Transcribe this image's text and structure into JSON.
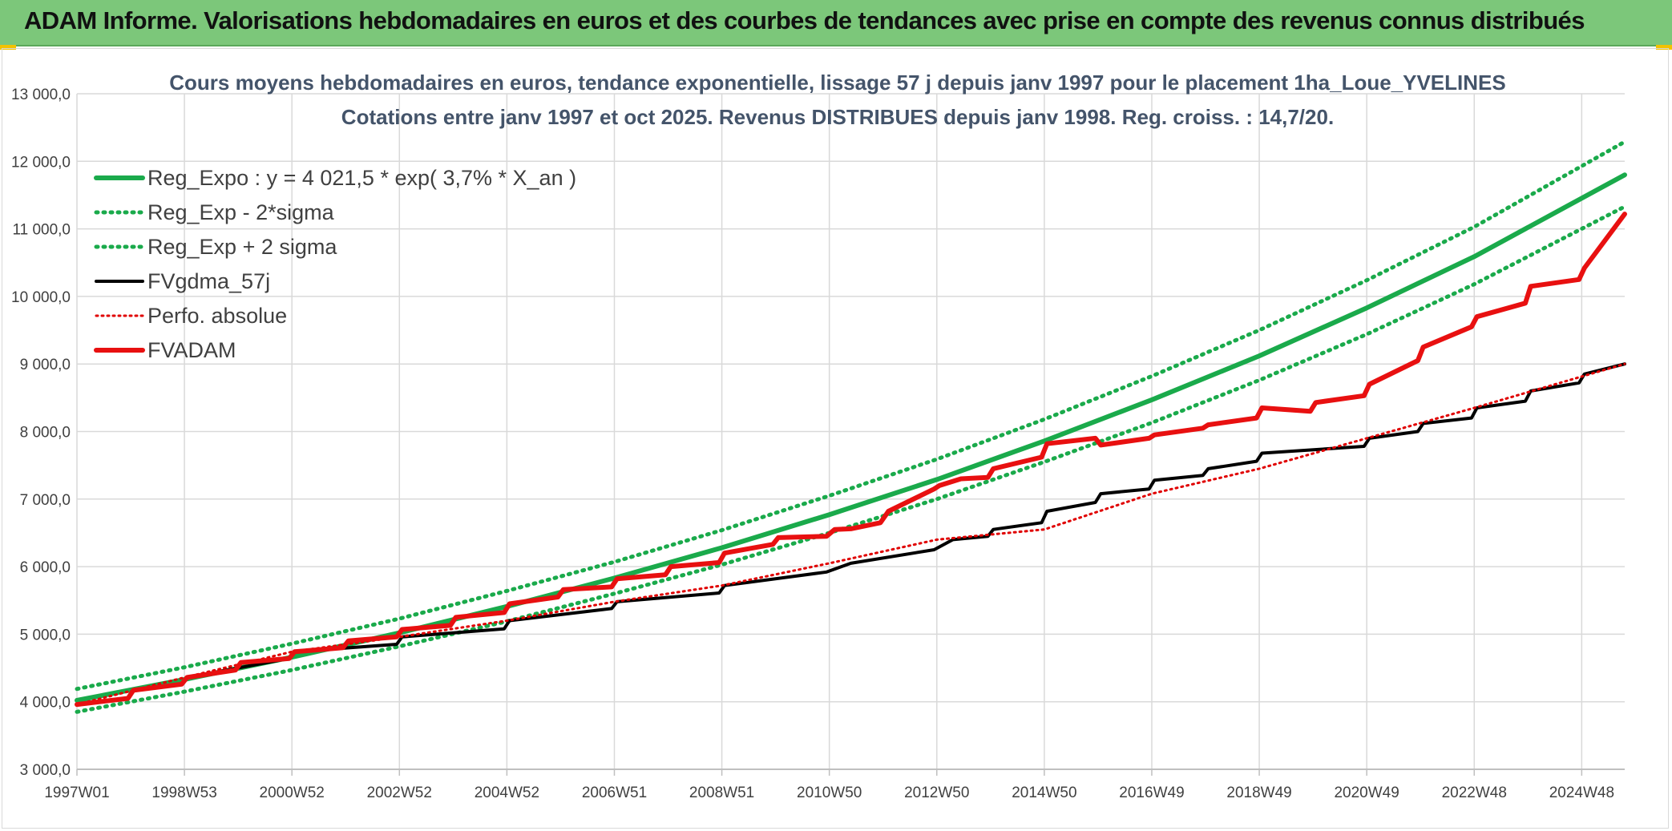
{
  "header": {
    "title": "ADAM Informe. Valorisations hebdomadaires en euros et des courbes de tendances avec prise en compte des revenus connus distribués"
  },
  "colors": {
    "banner": "#7cc77a",
    "trend": "#1aaa4b",
    "sigma": "#1aaa4b",
    "fvgdma": "#000000",
    "perfo": "#e00000",
    "fvadam": "#e81010",
    "grid": "#d9d9d9"
  },
  "chart_data": {
    "type": "line",
    "title": "Cours moyens hebdomadaires en euros, tendance exponentielle, lissage 57 j depuis janv 1997 pour le placement 1ha_Loue_YVELINES",
    "subtitle": "Cotations entre janv 1997 et oct 2025. Revenus DISTRIBUES depuis janv 1998. Reg. croiss. : 14,7/20.",
    "xlabel": "",
    "ylabel": "",
    "ylim": [
      3000,
      13000
    ],
    "y_ticks": [
      "3 000,0",
      "4 000,0",
      "5 000,0",
      "6 000,0",
      "7 000,0",
      "8 000,0",
      "9 000,0",
      "10 000,0",
      "11 000,0",
      "12 000,0",
      "13 000,0"
    ],
    "x_range": [
      1997.0,
      2025.8
    ],
    "x_ticks": [
      {
        "label": "1997W01",
        "x": 1997.0
      },
      {
        "label": "1998W53",
        "x": 1999.0
      },
      {
        "label": "2000W52",
        "x": 2001.0
      },
      {
        "label": "2002W52",
        "x": 2003.0
      },
      {
        "label": "2004W52",
        "x": 2005.0
      },
      {
        "label": "2006W51",
        "x": 2007.0
      },
      {
        "label": "2008W51",
        "x": 2009.0
      },
      {
        "label": "2010W50",
        "x": 2011.0
      },
      {
        "label": "2012W50",
        "x": 2013.0
      },
      {
        "label": "2014W50",
        "x": 2015.0
      },
      {
        "label": "2016W49",
        "x": 2017.0
      },
      {
        "label": "2018W49",
        "x": 2019.0
      },
      {
        "label": "2020W49",
        "x": 2021.0
      },
      {
        "label": "2022W48",
        "x": 2023.0
      },
      {
        "label": "2024W48",
        "x": 2025.0
      }
    ],
    "grid": true,
    "legend_position": "top-left",
    "series": [
      {
        "name": "Reg_Expo : y = 4 021,5 * exp( 3,7% *  X_an )",
        "style": "solid-thick",
        "x": [
          1997.0,
          1999.0,
          2001.0,
          2003.0,
          2005.0,
          2007.0,
          2009.0,
          2011.0,
          2013.0,
          2015.0,
          2017.0,
          2019.0,
          2021.0,
          2023.0,
          2025.8
        ],
        "y": [
          4020,
          4330,
          4660,
          5020,
          5410,
          5830,
          6280,
          6770,
          7290,
          7860,
          8470,
          9120,
          9830,
          10590,
          11800
        ]
      },
      {
        "name": "Reg_Exp - 2*sigma",
        "style": "dotted",
        "x": [
          1997.0,
          1999.0,
          2001.0,
          2003.0,
          2005.0,
          2007.0,
          2009.0,
          2011.0,
          2013.0,
          2015.0,
          2017.0,
          2019.0,
          2021.0,
          2023.0,
          2025.8
        ],
        "y": [
          3850,
          4150,
          4470,
          4820,
          5190,
          5600,
          6030,
          6500,
          7000,
          7550,
          8130,
          8760,
          9440,
          10180,
          11330
        ]
      },
      {
        "name": "Reg_Exp + 2 sigma",
        "style": "dotted",
        "x": [
          1997.0,
          1999.0,
          2001.0,
          2003.0,
          2005.0,
          2007.0,
          2009.0,
          2011.0,
          2013.0,
          2015.0,
          2017.0,
          2019.0,
          2021.0,
          2023.0,
          2025.8
        ],
        "y": [
          4190,
          4510,
          4860,
          5230,
          5640,
          6070,
          6540,
          7050,
          7590,
          8180,
          8820,
          9500,
          10240,
          11030,
          12290
        ]
      },
      {
        "name": "FVgdma_57j",
        "style": "solid-thin",
        "x": [
          1997.0,
          1997.95,
          1998.05,
          1998.95,
          1999.05,
          2000.95,
          2001.05,
          2002.95,
          2003.05,
          2004.95,
          2005.05,
          2006.95,
          2007.05,
          2008.95,
          2009.05,
          2010.95,
          2011.4,
          2012.95,
          2013.3,
          2013.95,
          2014.05,
          2014.95,
          2015.05,
          2015.95,
          2016.05,
          2016.95,
          2017.05,
          2017.95,
          2018.05,
          2018.95,
          2019.05,
          2020.95,
          2021.05,
          2021.95,
          2022.05,
          2022.95,
          2023.05,
          2023.95,
          2024.05,
          2024.95,
          2025.05,
          2025.8
        ],
        "y": [
          3960,
          4050,
          4170,
          4260,
          4360,
          4640,
          4740,
          4850,
          4960,
          5080,
          5200,
          5380,
          5480,
          5610,
          5720,
          5920,
          6050,
          6250,
          6400,
          6450,
          6550,
          6650,
          6820,
          6950,
          7080,
          7150,
          7280,
          7350,
          7450,
          7560,
          7680,
          7780,
          7900,
          8000,
          8120,
          8200,
          8350,
          8450,
          8600,
          8720,
          8850,
          9000
        ]
      },
      {
        "name": "Perfo. absolue",
        "style": "dotted-red",
        "x": [
          1997.0,
          1999.0,
          2001.0,
          2003.0,
          2005.0,
          2007.0,
          2009.0,
          2011.0,
          2013.0,
          2015.0,
          2017.0,
          2019.0,
          2021.0,
          2023.0,
          2025.8
        ],
        "y": [
          3960,
          4360,
          4740,
          4960,
          5200,
          5480,
          5720,
          6050,
          6400,
          6550,
          7080,
          7450,
          7900,
          8350,
          9000
        ]
      },
      {
        "name": "FVADAM",
        "style": "solid-thick-red",
        "x": [
          1997.0,
          1997.95,
          1998.05,
          1998.95,
          1999.05,
          1999.95,
          2000.05,
          2000.95,
          2001.05,
          2001.95,
          2002.05,
          2002.95,
          2003.05,
          2003.95,
          2004.05,
          2004.95,
          2005.05,
          2005.95,
          2006.05,
          2006.95,
          2007.05,
          2007.95,
          2008.05,
          2008.95,
          2009.05,
          2009.95,
          2010.05,
          2010.95,
          2011.1,
          2011.4,
          2011.95,
          2012.1,
          2012.95,
          2013.05,
          2013.45,
          2013.95,
          2014.05,
          2014.95,
          2015.05,
          2015.95,
          2016.05,
          2016.95,
          2017.05,
          2017.95,
          2018.05,
          2018.95,
          2019.05,
          2019.95,
          2020.05,
          2020.95,
          2021.05,
          2021.95,
          2022.05,
          2022.95,
          2023.05,
          2023.95,
          2024.05,
          2024.95,
          2025.05,
          2025.8
        ],
        "y": [
          3960,
          4050,
          4170,
          4260,
          4360,
          4470,
          4580,
          4640,
          4740,
          4800,
          4900,
          4960,
          5070,
          5130,
          5250,
          5320,
          5450,
          5550,
          5660,
          5700,
          5820,
          5880,
          6000,
          6060,
          6200,
          6330,
          6430,
          6450,
          6550,
          6560,
          6650,
          6820,
          7150,
          7200,
          7300,
          7320,
          7450,
          7620,
          7820,
          7900,
          7800,
          7900,
          7950,
          8050,
          8100,
          8200,
          8350,
          8300,
          8430,
          8530,
          8700,
          9050,
          9250,
          9550,
          9700,
          9900,
          10150,
          10250,
          10420,
          11220
        ]
      }
    ]
  }
}
